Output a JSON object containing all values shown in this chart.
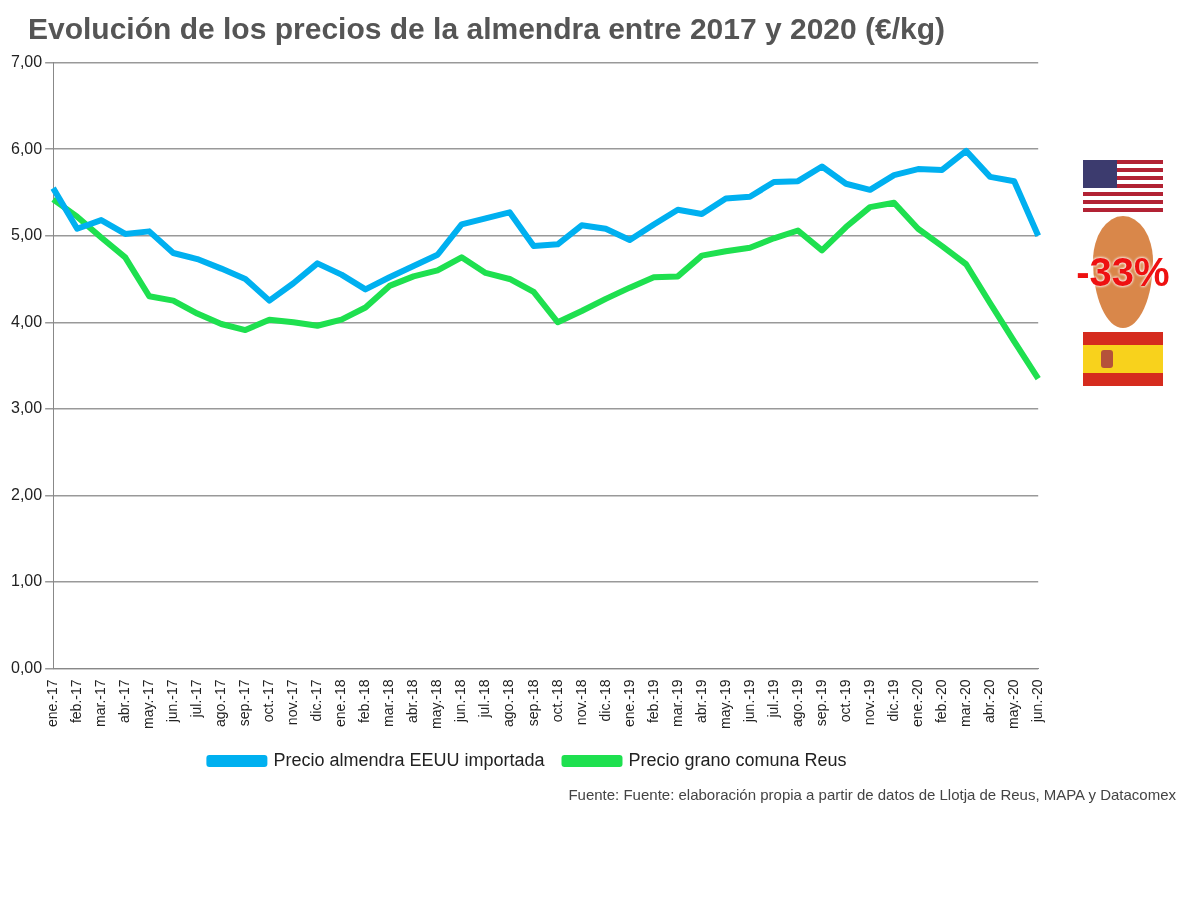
{
  "chart_data": {
    "type": "line",
    "title": "Evolución de los precios de la almendra entre 2017 y 2020 (€/kg)",
    "categories": [
      "ene.-17",
      "feb.-17",
      "mar.-17",
      "abr.-17",
      "may.-17",
      "jun.-17",
      "jul.-17",
      "ago.-17",
      "sep.-17",
      "oct.-17",
      "nov.-17",
      "dic.-17",
      "ene.-18",
      "feb.-18",
      "mar.-18",
      "abr.-18",
      "may.-18",
      "jun.-18",
      "jul.-18",
      "ago.-18",
      "sep.-18",
      "oct.-18",
      "nov.-18",
      "dic.-18",
      "ene.-19",
      "feb.-19",
      "mar.-19",
      "abr.-19",
      "may.-19",
      "jun.-19",
      "jul.-19",
      "ago.-19",
      "sep.-19",
      "oct.-19",
      "nov.-19",
      "dic.-19",
      "ene.-20",
      "feb.-20",
      "mar.-20",
      "abr.-20",
      "may.-20",
      "jun.-20"
    ],
    "series": [
      {
        "name": "Precio almendra EEUU importada",
        "color": "#00b0f0",
        "values": [
          5.55,
          5.08,
          5.18,
          5.02,
          5.05,
          4.8,
          4.73,
          4.62,
          4.5,
          4.25,
          4.45,
          4.68,
          4.55,
          4.38,
          4.52,
          4.65,
          4.78,
          5.13,
          5.2,
          5.27,
          4.88,
          4.9,
          5.12,
          5.08,
          4.95,
          5.13,
          5.3,
          5.25,
          5.43,
          5.45,
          5.62,
          5.63,
          5.8,
          5.6,
          5.53,
          5.7,
          5.77,
          5.76,
          5.98,
          5.68,
          5.63,
          5.0
        ]
      },
      {
        "name": "Precio grano comuna Reus",
        "color": "#1ee04f",
        "values": [
          5.42,
          5.22,
          4.98,
          4.75,
          4.3,
          4.25,
          4.1,
          3.98,
          3.91,
          4.03,
          4.0,
          3.96,
          4.03,
          4.17,
          4.42,
          4.53,
          4.6,
          4.75,
          4.57,
          4.5,
          4.35,
          4.0,
          4.13,
          4.27,
          4.4,
          4.52,
          4.53,
          4.77,
          4.82,
          4.86,
          4.97,
          5.06,
          4.83,
          5.1,
          5.33,
          5.38,
          5.08,
          4.88,
          4.67,
          4.22,
          3.78,
          3.35
        ]
      }
    ],
    "ylim": [
      0,
      7
    ],
    "yticks": [
      {
        "value": 0,
        "label": "0,00"
      },
      {
        "value": 1,
        "label": "1,00"
      },
      {
        "value": 2,
        "label": "2,00"
      },
      {
        "value": 3,
        "label": "3,00"
      },
      {
        "value": 4,
        "label": "4,00"
      },
      {
        "value": 5,
        "label": "5,00"
      },
      {
        "value": 6,
        "label": "6,00"
      },
      {
        "value": 7,
        "label": "7,00"
      }
    ],
    "grid": "y",
    "legend": "bottom",
    "marker": "none",
    "line_style": "solid",
    "annotations": [
      "-33%",
      "Fuente: Fuente: elaboración propia a partir de datos de Llotja de Reus, MAPA y Datacomex"
    ]
  }
}
